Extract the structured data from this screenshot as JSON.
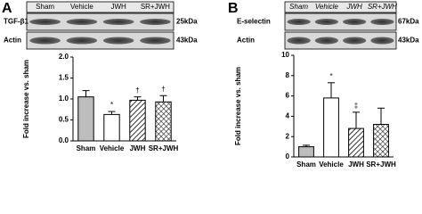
{
  "chart_data": [
    {
      "type": "bar",
      "panel": "A",
      "ylabel": "Fold increase vs. sham",
      "categories": [
        "Sham",
        "Vehicle",
        "JWH",
        "SR+JWH"
      ],
      "values": [
        1.05,
        0.63,
        0.97,
        0.93
      ],
      "errors": [
        0.15,
        0.07,
        0.08,
        0.15
      ],
      "markers": [
        null,
        "*",
        "†",
        "†"
      ],
      "fills": [
        "#bdbdbd",
        "#ffffff",
        "hatch",
        "crosshatch"
      ],
      "ylim": [
        0,
        2
      ],
      "yticks": [
        {
          "value": 0,
          "label": "0.0"
        },
        0.5,
        {
          "value": 1,
          "label": "1.0"
        },
        1.5,
        {
          "value": 2,
          "label": "2.0"
        }
      ],
      "blot": {
        "columns": [
          "Sham",
          "Vehicle",
          "JWH",
          "SR+JWH"
        ],
        "rows": [
          {
            "label": "TGF-β1",
            "size": "25kDa"
          },
          {
            "label": "Actin",
            "size": "43kDa"
          }
        ]
      }
    },
    {
      "type": "bar",
      "panel": "B",
      "ylabel": "Fold increase vs. sham",
      "categories": [
        "Sham",
        "Vehicle",
        "JWH",
        "SR+JWH"
      ],
      "values": [
        1.0,
        5.8,
        2.8,
        3.2
      ],
      "errors": [
        0.15,
        1.5,
        1.6,
        1.6
      ],
      "markers": [
        null,
        "*",
        "‡",
        null
      ],
      "fills": [
        "#bdbdbd",
        "#ffffff",
        "hatch",
        "crosshatch"
      ],
      "ylim": [
        0,
        10
      ],
      "yticks": [
        0,
        2,
        4,
        6,
        8,
        10
      ],
      "blot": {
        "columns": [
          "Sham",
          "Vehicle",
          "JWH",
          "SR+JWH"
        ],
        "rows": [
          {
            "label": "E-selectin",
            "size": "67kDa"
          },
          {
            "label": "Actin",
            "size": "43kDa"
          }
        ]
      }
    }
  ]
}
